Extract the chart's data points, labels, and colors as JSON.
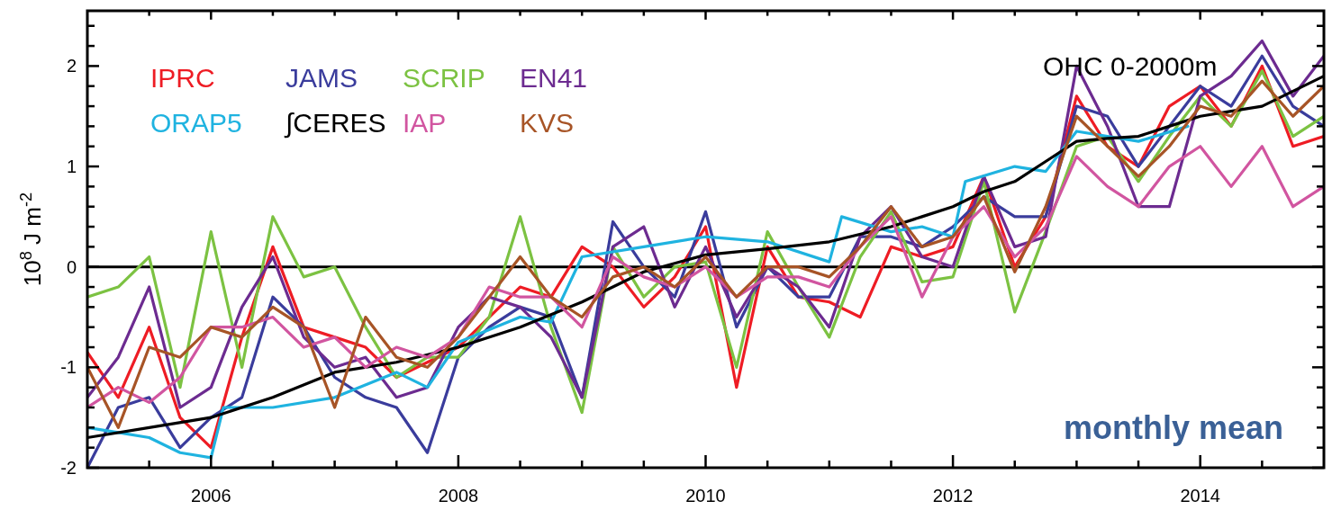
{
  "chart_data": {
    "type": "line",
    "ylabel": "10$^{8}$ J m$^{-2}$",
    "xlim": [
      2005,
      2015
    ],
    "ylim": [
      -2,
      2.55
    ],
    "xticks": [
      {
        "value": 2005.5,
        "label": null
      },
      {
        "value": 2006,
        "label": "2006"
      },
      {
        "value": 2006.5,
        "label": null
      },
      {
        "value": 2007,
        "label": null
      },
      {
        "value": 2007.5,
        "label": null
      },
      {
        "value": 2008,
        "label": "2008"
      },
      {
        "value": 2008.5,
        "label": null
      },
      {
        "value": 2009,
        "label": null
      },
      {
        "value": 2009.5,
        "label": null
      },
      {
        "value": 2010,
        "label": "2010"
      },
      {
        "value": 2010.5,
        "label": null
      },
      {
        "value": 2011,
        "label": null
      },
      {
        "value": 2011.5,
        "label": null
      },
      {
        "value": 2012,
        "label": "2012"
      },
      {
        "value": 2012.5,
        "label": null
      },
      {
        "value": 2013,
        "label": null
      },
      {
        "value": 2013.5,
        "label": null
      },
      {
        "value": 2014,
        "label": "2014"
      },
      {
        "value": 2014.5,
        "label": null
      }
    ],
    "yticks": [
      -2,
      {
        "value": -1.8,
        "label": null
      },
      {
        "value": -1.6,
        "label": null
      },
      {
        "value": -1.4,
        "label": null
      },
      {
        "value": -1.2,
        "label": null
      },
      -1,
      {
        "value": -0.8,
        "label": null
      },
      {
        "value": -0.6,
        "label": null
      },
      {
        "value": -0.4,
        "label": null
      },
      {
        "value": -0.2,
        "label": null
      },
      0,
      {
        "value": 0.2,
        "label": null
      },
      {
        "value": 0.4,
        "label": null
      },
      {
        "value": 0.6,
        "label": null
      },
      {
        "value": 0.8,
        "label": null
      },
      1,
      {
        "value": 1.2,
        "label": null
      },
      {
        "value": 1.4,
        "label": null
      },
      {
        "value": 1.6,
        "label": null
      },
      {
        "value": 1.8,
        "label": null
      },
      2,
      {
        "value": 2.2,
        "label": null
      },
      {
        "value": 2.4,
        "label": null
      }
    ],
    "x": [
      2005,
      2005.25,
      2005.5,
      2005.75,
      2006,
      2006.25,
      2006.5,
      2006.75,
      2007,
      2007.25,
      2007.5,
      2007.75,
      2008,
      2008.25,
      2008.5,
      2008.75,
      2009,
      2009.25,
      2009.5,
      2009.75,
      2010,
      2010.25,
      2010.5,
      2010.75,
      2011,
      2011.25,
      2011.5,
      2011.75,
      2012,
      2012.25,
      2012.5,
      2012.75,
      2013,
      2013.25,
      2013.5,
      2013.75,
      2014,
      2014.25,
      2014.5,
      2014.75,
      2015
    ],
    "series": [
      {
        "name": "IPRC",
        "color": "#ee1c24",
        "values": [
          -0.85,
          -1.3,
          -0.6,
          -1.5,
          -1.8,
          -0.7,
          0.2,
          -0.6,
          -0.7,
          -0.8,
          -1.1,
          -0.95,
          -0.8,
          -0.5,
          -0.2,
          -0.3,
          0.2,
          0.0,
          -0.4,
          -0.1,
          0.4,
          -1.2,
          0.2,
          -0.3,
          -0.35,
          -0.5,
          0.2,
          0.1,
          0.2,
          0.9,
          0.0,
          0.5,
          1.7,
          1.2,
          1.0,
          1.6,
          1.8,
          1.4,
          2.0,
          1.2,
          1.3
        ]
      },
      {
        "name": "JAMS",
        "color": "#3a3c9c",
        "values": [
          -2.0,
          -1.4,
          -1.3,
          -1.8,
          -1.5,
          -1.3,
          -0.3,
          -0.6,
          -1.1,
          -1.3,
          -1.4,
          -1.85,
          -0.9,
          -0.6,
          -0.4,
          -0.5,
          -1.3,
          0.45,
          0.0,
          -0.3,
          0.55,
          -0.6,
          0.0,
          -0.3,
          -0.3,
          0.3,
          0.3,
          0.2,
          0.4,
          0.7,
          0.5,
          0.5,
          1.6,
          1.5,
          1.0,
          1.4,
          1.8,
          1.6,
          2.1,
          1.6,
          1.4
        ]
      },
      {
        "name": "SCRIP",
        "color": "#7cc242",
        "values": [
          -0.3,
          -0.2,
          0.1,
          -1.2,
          0.35,
          -1.0,
          0.5,
          -0.1,
          0.0,
          -0.6,
          -1.1,
          -0.9,
          -0.9,
          -0.5,
          0.5,
          -0.6,
          -1.45,
          0.2,
          -0.3,
          0.0,
          0.05,
          -1.0,
          0.35,
          -0.2,
          -0.7,
          0.1,
          0.55,
          -0.15,
          -0.1,
          0.85,
          -0.45,
          0.35,
          1.2,
          1.3,
          0.85,
          1.3,
          1.7,
          1.4,
          1.95,
          1.3,
          1.5
        ]
      },
      {
        "name": "EN41",
        "color": "#6c2b90",
        "values": [
          -1.3,
          -0.9,
          -0.2,
          -1.4,
          -1.2,
          -0.4,
          0.1,
          -0.7,
          -1.0,
          -0.9,
          -1.3,
          -1.2,
          -0.6,
          -0.3,
          -0.4,
          -0.7,
          -1.3,
          0.2,
          0.4,
          -0.4,
          0.2,
          -0.5,
          0.0,
          -0.2,
          -0.6,
          0.3,
          0.6,
          0.1,
          0.0,
          0.9,
          0.2,
          0.3,
          2.0,
          1.4,
          0.6,
          0.6,
          1.7,
          1.9,
          2.25,
          1.7,
          2.1
        ]
      },
      {
        "name": "ORAP5",
        "color": "#1fb3e0",
        "x": [
          2005,
          2005.25,
          2005.5,
          2005.75,
          2006,
          2006.1,
          2006.5,
          2007,
          2007.5,
          2007.75,
          2008,
          2008.5,
          2008.75,
          2009,
          2009.5,
          2010,
          2010.5,
          2011,
          2011.1,
          2011.5,
          2011.75,
          2012,
          2012.1,
          2012.5,
          2012.75,
          2013,
          2013.5,
          2013.9
        ],
        "values": [
          -1.6,
          -1.65,
          -1.7,
          -1.85,
          -1.9,
          -1.4,
          -1.4,
          -1.3,
          -1.05,
          -1.2,
          -0.75,
          -0.5,
          -0.55,
          0.1,
          0.2,
          0.3,
          0.25,
          0.05,
          0.5,
          0.35,
          0.4,
          0.3,
          0.85,
          1.0,
          0.95,
          1.35,
          1.25,
          1.4
        ]
      },
      {
        "name": "∫CERES",
        "color": "#000000",
        "x": [
          2005,
          2005.5,
          2006,
          2006.5,
          2007,
          2007.5,
          2008,
          2008.5,
          2009,
          2009.5,
          2010,
          2010.5,
          2011,
          2011.5,
          2011.75,
          2012,
          2012.25,
          2012.5,
          2012.75,
          2013,
          2013.25,
          2013.5,
          2013.75,
          2014,
          2014.25,
          2014.5,
          2014.75,
          2015
        ],
        "values": [
          -1.7,
          -1.6,
          -1.5,
          -1.3,
          -1.05,
          -0.95,
          -0.8,
          -0.6,
          -0.35,
          -0.05,
          0.12,
          0.18,
          0.25,
          0.4,
          0.5,
          0.6,
          0.75,
          0.85,
          1.05,
          1.25,
          1.28,
          1.3,
          1.4,
          1.5,
          1.55,
          1.6,
          1.75,
          1.9
        ]
      },
      {
        "name": "IAP",
        "color": "#d155a0",
        "values": [
          -1.4,
          -1.2,
          -1.35,
          -1.1,
          -0.6,
          -0.6,
          -0.5,
          -0.8,
          -0.7,
          -1.0,
          -0.8,
          -0.9,
          -0.7,
          -0.2,
          -0.3,
          -0.3,
          -0.6,
          0.1,
          -0.1,
          -0.2,
          0.0,
          -0.3,
          -0.1,
          -0.1,
          -0.2,
          0.2,
          0.5,
          -0.3,
          0.3,
          0.6,
          0.1,
          0.4,
          1.1,
          0.8,
          0.6,
          1.0,
          1.2,
          0.8,
          1.2,
          0.6,
          0.8
        ]
      },
      {
        "name": "KVS",
        "color": "#a75426",
        "values": [
          -1.0,
          -1.6,
          -0.8,
          -0.9,
          -0.6,
          -0.7,
          -0.4,
          -0.6,
          -1.4,
          -0.5,
          -0.9,
          -1.0,
          -0.7,
          -0.3,
          0.1,
          -0.3,
          -0.5,
          -0.1,
          0.0,
          -0.2,
          0.1,
          -0.3,
          0.0,
          0.0,
          -0.1,
          0.2,
          0.6,
          0.2,
          0.3,
          0.7,
          -0.05,
          0.6,
          1.5,
          1.2,
          0.9,
          1.2,
          1.6,
          1.5,
          1.85,
          1.5,
          1.8
        ]
      }
    ],
    "ref_lines": [
      {
        "axis": "y",
        "value": 0,
        "color": "#000000"
      }
    ],
    "legend": "top left",
    "annotations": [
      "OHC 0-2000m",
      "monthly mean"
    ]
  }
}
